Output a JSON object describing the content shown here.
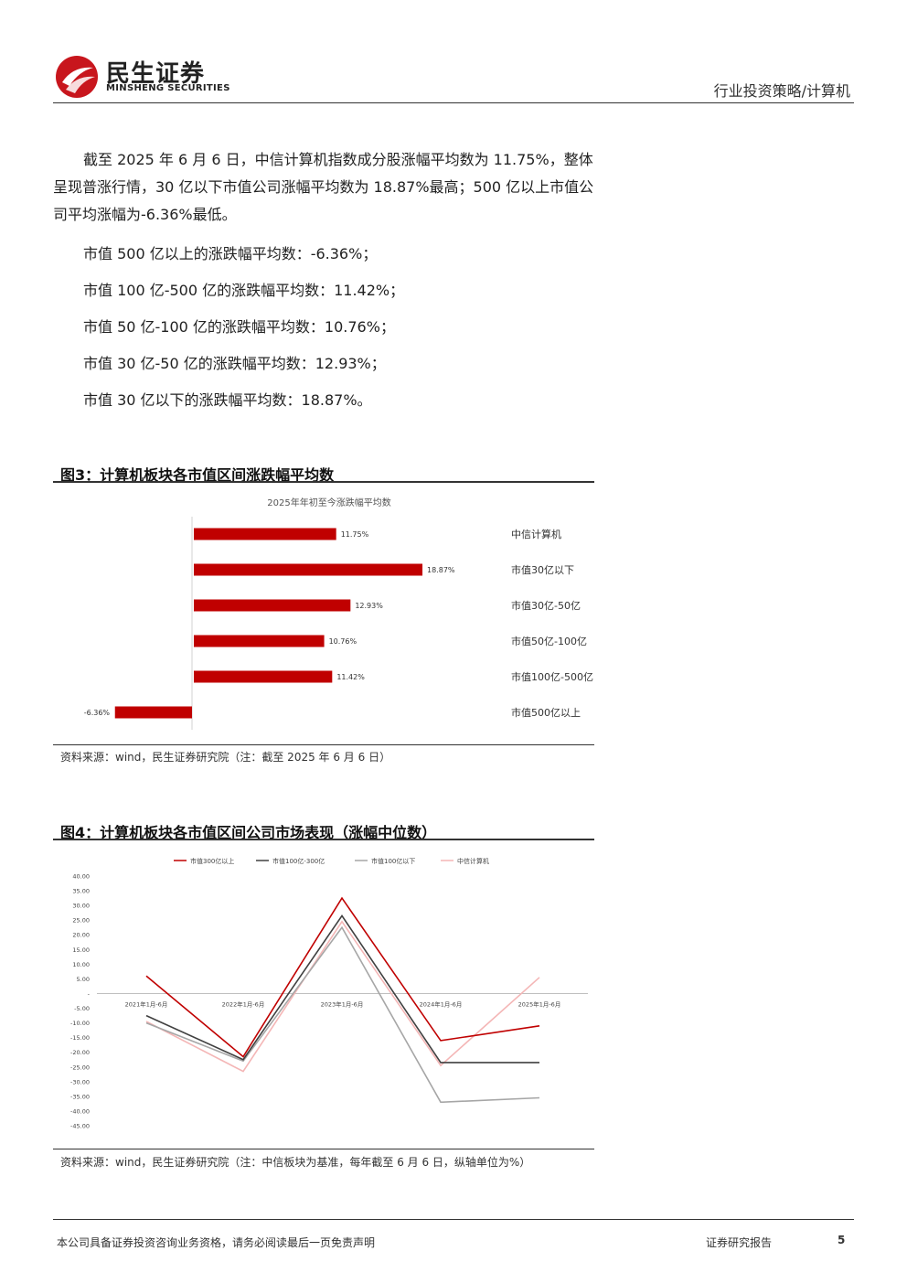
{
  "header": {
    "logo_cn": "民生证券",
    "logo_en": "MINSHENG SECURITIES",
    "right": "行业投资策略/计算机"
  },
  "body": {
    "paragraph": "截至 2025 年 6 月 6 日，中信计算机指数成分股涨幅平均数为 11.75%，整体呈现普涨行情，30 亿以下市值公司涨幅平均数为 18.87%最高；500 亿以上市值公司平均涨幅为-6.36%最低。",
    "items": [
      "市值 500 亿以上的涨跌幅平均数：-6.36%；",
      "市值 100 亿-500 亿的涨跌幅平均数：11.42%；",
      "市值 50 亿-100 亿的涨跌幅平均数：10.76%；",
      "市值 30 亿-50 亿的涨跌幅平均数：12.93%；",
      "市值 30 亿以下的涨跌幅平均数：18.87%。"
    ]
  },
  "figure3": {
    "title": "图3：计算机板块各市值区间涨跌幅平均数",
    "source": "资料来源：wind，民生证券研究院（注：截至 2025 年 6 月 6 日）"
  },
  "figure4": {
    "title": "图4：计算机板块各市值区间公司市场表现（涨幅中位数）",
    "source": "资料来源：wind，民生证券研究院（注：中信板块为基准，每年截至 6 月 6 日，纵轴单位为%）"
  },
  "chart_data": [
    {
      "type": "bar",
      "orientation": "horizontal",
      "title": "2025年年初至今涨跌幅平均数",
      "categories": [
        "中信计算机",
        "市值30亿以下",
        "市值30亿-50亿",
        "市值50亿-100亿",
        "市值100亿-500亿",
        "市值500亿以上"
      ],
      "values": [
        11.75,
        18.87,
        12.93,
        10.76,
        11.42,
        -6.36
      ],
      "value_labels": [
        "11.75%",
        "18.87%",
        "12.93%",
        "10.76%",
        "11.42%",
        "-6.36%"
      ],
      "bar_color": "#c00000"
    },
    {
      "type": "line",
      "x": [
        "2021年1月-6月",
        "2022年1月-6月",
        "2023年1月-6月",
        "2024年1月-6月",
        "2025年1月-6月"
      ],
      "series": [
        {
          "name": "市值300亿以上",
          "color": "#c00000",
          "values": [
            6.0,
            -21.5,
            32.5,
            -16.0,
            -11.0
          ]
        },
        {
          "name": "市值100亿-300亿",
          "color": "#404040",
          "values": [
            -7.5,
            -22.5,
            26.5,
            -23.5,
            -23.5
          ]
        },
        {
          "name": "市值100亿以下",
          "color": "#a6a6a6",
          "values": [
            -10.0,
            -23.0,
            22.5,
            -37.0,
            -35.5
          ]
        },
        {
          "name": "中信计算机",
          "color": "#f4b6b6",
          "values": [
            -9.5,
            -26.5,
            24.5,
            -24.5,
            5.5
          ]
        }
      ],
      "ylim": [
        -45,
        40
      ],
      "yticks": [
        "40.00",
        "35.00",
        "30.00",
        "25.00",
        "20.00",
        "15.00",
        "10.00",
        "5.00",
        "-",
        "-5.00",
        "-10.00",
        "-15.00",
        "-20.00",
        "-25.00",
        "-30.00",
        "-35.00",
        "-40.00",
        "-45.00"
      ]
    }
  ],
  "footer": {
    "disclaimer": "本公司具备证券投资咨询业务资格，请务必阅读最后一页免责声明",
    "report_type": "证券研究报告",
    "page": "5"
  }
}
